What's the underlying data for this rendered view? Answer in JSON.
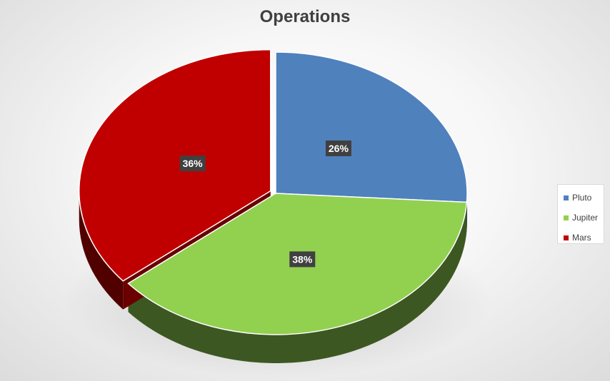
{
  "chart_data": {
    "type": "pie",
    "title": "Operations",
    "categories": [
      "Pluto",
      "Jupiter",
      "Mars"
    ],
    "values": [
      26,
      38,
      36
    ],
    "data_labels": [
      "26%",
      "38%",
      "36%"
    ],
    "colors": [
      "#4f81bd",
      "#92d050",
      "#c00000"
    ],
    "exploded": "Mars",
    "three_d": true,
    "legend_position": "right"
  }
}
